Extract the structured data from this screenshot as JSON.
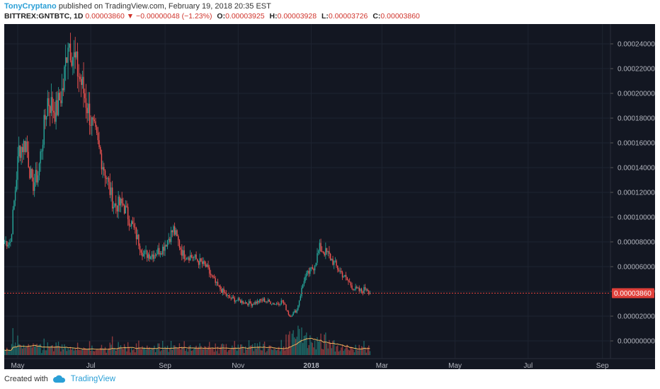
{
  "header": {
    "author": "TonyCryptano",
    "published_text": "published on TradingView.com, February 19, 2018 20:35 EST",
    "symbol": "BITTREX:GNTBTC, 1D",
    "last": "0.00003860",
    "change": "▼ −0.00000048 (−1.23%)",
    "o_label": "O:",
    "o": "0.00003925",
    "h_label": "H:",
    "h": "0.00003928",
    "l_label": "L:",
    "l": "0.00003726",
    "c_label": "C:",
    "c": "0.00003860"
  },
  "footer": {
    "created_with": "Created with",
    "brand": "TradingView",
    "logo_icon": "tradingview-cloud-icon"
  },
  "colors": {
    "background": "#131722",
    "grid": "#1e2431",
    "up": "#26a69a",
    "down": "#ef5350",
    "volume_ma": "#f0b35c",
    "last_price": "#e0403a"
  },
  "chart_data": {
    "type": "candlestick",
    "y_axis_ticks": [
      "0.00024000",
      "0.00022000",
      "0.00020000",
      "0.00018000",
      "0.00016000",
      "0.00014000",
      "0.00012000",
      "0.00010000",
      "0.00008000",
      "0.00006000",
      "0.00004000",
      "0.00002000",
      "0.00000000"
    ],
    "y_axis_values": [
      0.00024,
      0.00022,
      0.0002,
      0.00018,
      0.00016,
      0.00014,
      0.00012,
      0.0001,
      8e-05,
      6e-05,
      4e-05,
      2e-05,
      0
    ],
    "x_axis_ticks": [
      "May",
      "Jul",
      "Sep",
      "Nov",
      "2018",
      "Mar",
      "May",
      "Jul",
      "Sep"
    ],
    "last_price_label": "0.00003860",
    "last_price_value": 3.86e-05,
    "price_path": [
      {
        "date": "2017-04-20",
        "close": 8e-05
      },
      {
        "date": "2017-04-25",
        "close": 8e-05
      },
      {
        "date": "2017-05-02",
        "close": 0.000155
      },
      {
        "date": "2017-05-08",
        "close": 0.00016
      },
      {
        "date": "2017-05-13",
        "close": 0.000125
      },
      {
        "date": "2017-05-18",
        "close": 0.000135
      },
      {
        "date": "2017-05-26",
        "close": 0.000195
      },
      {
        "date": "2017-06-02",
        "close": 0.000185
      },
      {
        "date": "2017-06-08",
        "close": 0.000205
      },
      {
        "date": "2017-06-12",
        "close": 0.000245
      },
      {
        "date": "2017-06-18",
        "close": 0.000225
      },
      {
        "date": "2017-06-24",
        "close": 0.000205
      },
      {
        "date": "2017-07-02",
        "close": 0.000175
      },
      {
        "date": "2017-07-12",
        "close": 0.00014
      },
      {
        "date": "2017-07-20",
        "close": 0.00011
      },
      {
        "date": "2017-07-28",
        "close": 0.00011
      },
      {
        "date": "2017-08-06",
        "close": 9e-05
      },
      {
        "date": "2017-08-14",
        "close": 7e-05
      },
      {
        "date": "2017-08-22",
        "close": 7e-05
      },
      {
        "date": "2017-08-30",
        "close": 7.5e-05
      },
      {
        "date": "2017-09-08",
        "close": 9e-05
      },
      {
        "date": "2017-09-16",
        "close": 7e-05
      },
      {
        "date": "2017-09-24",
        "close": 6.8e-05
      },
      {
        "date": "2017-10-05",
        "close": 6e-05
      },
      {
        "date": "2017-10-14",
        "close": 4.5e-05
      },
      {
        "date": "2017-10-24",
        "close": 3.5e-05
      },
      {
        "date": "2017-11-03",
        "close": 3.2e-05
      },
      {
        "date": "2017-11-12",
        "close": 3e-05
      },
      {
        "date": "2017-11-22",
        "close": 3.3e-05
      },
      {
        "date": "2017-12-02",
        "close": 3e-05
      },
      {
        "date": "2017-12-08",
        "close": 3.2e-05
      },
      {
        "date": "2017-12-14",
        "close": 2e-05
      },
      {
        "date": "2017-12-20",
        "close": 2.5e-05
      },
      {
        "date": "2017-12-26",
        "close": 5e-05
      },
      {
        "date": "2018-01-03",
        "close": 6e-05
      },
      {
        "date": "2018-01-08",
        "close": 7.5e-05
      },
      {
        "date": "2018-01-15",
        "close": 7e-05
      },
      {
        "date": "2018-01-22",
        "close": 6e-05
      },
      {
        "date": "2018-01-30",
        "close": 5e-05
      },
      {
        "date": "2018-02-06",
        "close": 4.2e-05
      },
      {
        "date": "2018-02-12",
        "close": 4e-05
      },
      {
        "date": "2018-02-16",
        "close": 4.3e-05
      },
      {
        "date": "2018-02-19",
        "close": 3.86e-05
      }
    ]
  }
}
